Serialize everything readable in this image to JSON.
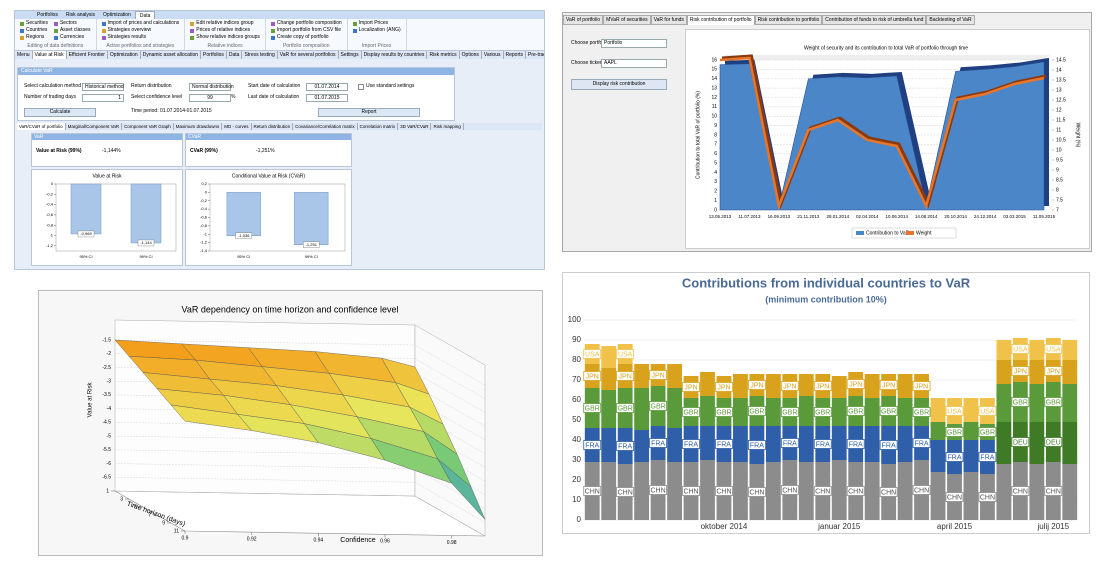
{
  "app": {
    "tabs": [
      "Portfolios",
      "Risk analysis",
      "Optimization",
      "Data"
    ],
    "ribbon_groups": [
      {
        "items": [
          "Securities",
          "Countries",
          "Regions",
          "Sectors",
          "Asset classes",
          "Currencies"
        ],
        "label": "Editing of data definitions"
      },
      {
        "items": [
          "Import of prices and calculations",
          "Strategies overview",
          "Strategies results"
        ],
        "label": "Active portfolios and strategies"
      },
      {
        "items": [
          "Edit relative indices group",
          "Prices of relative indices",
          "Show relative indices groups"
        ],
        "label": "Relative indices"
      },
      {
        "items": [
          "Change portfolio composition",
          "Import portfolio from CSV file",
          "Create copy of portfolio"
        ],
        "label": "Portfolio composition"
      },
      {
        "items": [
          "Import Prices",
          "Localization (ANG)"
        ],
        "label": "Import Prices"
      }
    ],
    "sheet_tabs": [
      "Menu",
      "Value at Risk",
      "Efficient Frontier",
      "Optimization",
      "Dynamic asset allocation",
      "Portfolios",
      "Data",
      "Stress testing",
      "VaR for several portfolios",
      "Settings",
      "Display results by countries",
      "Risk metrics",
      "Options",
      "Various",
      "Reports",
      "Pre-trade RM"
    ],
    "form": {
      "title": "Calculate VaR",
      "fields": [
        {
          "label": "Select calculation method",
          "value": "Historical method"
        },
        {
          "label": "Return distribution",
          "value": "Normal distribution"
        },
        {
          "label": "Start date of calculation",
          "value": "01.07.2014"
        },
        {
          "label": "Number of trading days",
          "value": "1"
        },
        {
          "label": "Select confidence level",
          "value": "99",
          "unit": "%"
        },
        {
          "label": "Last date of calculation",
          "value": "01.07.2015"
        }
      ],
      "checkbox": "Use standard settings",
      "buttons": [
        "Calculate",
        "Report"
      ],
      "period": "Time period: 01.07.2014-01.07.2015"
    },
    "result_tabs": [
      "VaR/CVaR of portfolio",
      "Marginal/Component VaR",
      "Component VaR Graph",
      "Maximum drawdowns",
      "MD - curves",
      "Return distribution",
      "Covariance/Correlation matrix",
      "Correlation matrix",
      "3D VaR/CVaR",
      "Risk mapping"
    ],
    "var_box": {
      "header": "VaR",
      "label": "Value at Risk (99%)",
      "value": "-1,144%"
    },
    "cvar_box": {
      "header": "CVaR",
      "label": "CVaR (99%)",
      "value": "-1,251%"
    },
    "var_chart": {
      "type": "bar",
      "title": "Value at Risk",
      "categories": [
        "95% CI",
        "99% CI"
      ],
      "values": [
        -0.969,
        -1.144
      ],
      "value_labels": [
        "-0,969",
        "-1,144"
      ],
      "color": "#a9c6e8",
      "ylim": [
        -1.3,
        0
      ],
      "yticks": [
        0,
        {
          "value": -0.2,
          "label": "-0,2"
        },
        {
          "value": -0.4,
          "label": "-0,4"
        },
        {
          "value": -0.6,
          "label": "-0,6"
        },
        {
          "value": -0.8,
          "label": "-0,8"
        },
        {
          "value": -1,
          "label": "-1"
        },
        {
          "value": -1.2,
          "label": "-1,2"
        }
      ]
    },
    "cvar_chart": {
      "type": "bar",
      "title": "Conditional Value at Risk (CVaR)",
      "categories": [
        "95% CI",
        "99% CI"
      ],
      "values": [
        -1.036,
        -1.251
      ],
      "value_labels": [
        "-1,036",
        "-1,251"
      ],
      "color": "#a9c6e8",
      "ylim": [
        -1.4,
        0.2
      ],
      "yticks": [
        {
          "value": 0.2,
          "label": "0,2"
        },
        0,
        {
          "value": -0.2,
          "label": "-0,2"
        },
        {
          "value": -0.4,
          "label": "-0,4"
        },
        {
          "value": -0.6,
          "label": "-0,6"
        },
        {
          "value": -0.8,
          "label": "-0,8"
        },
        {
          "value": -1,
          "label": "-1"
        },
        {
          "value": -1.2,
          "label": "-1,2"
        },
        {
          "value": -1.4,
          "label": "-1,4"
        }
      ]
    }
  },
  "risk_panel": {
    "tabs": [
      "VaR of portfolio",
      "MVaR of securities",
      "VaR for funds",
      "Risk contribution of portfolio",
      "Risk contribution to portfolio",
      "Contribution of funds to risk of umbrella fund",
      "Backtesting of VaR"
    ],
    "controls": [
      {
        "label": "Choose portfolio",
        "value": "Portfolio"
      },
      {
        "label": "Choose ticker",
        "value": "AAPL"
      }
    ],
    "button": "Display risk contribution",
    "chart": {
      "type": "area-line",
      "title": "Weight of security and its contribution to total VaR of portfolio through time",
      "y_label": "Contribution to total VaR of portfolio (%)",
      "y2_label": "Weight (%)",
      "categories": [
        "13.05.2013",
        "11.07.2013",
        "16.09.2013",
        "21.11.2013",
        "28.01.2014",
        "02.04.2014",
        "10.06.2014",
        "14.08.2014",
        "20.10.2014",
        "24.12.2014",
        "03.03.2015",
        "11.05.2015"
      ],
      "series": [
        {
          "name": "Contribution to VaR",
          "color": "#4a86c8",
          "values": [
            15.5,
            15.6,
            0.3,
            14,
            14.2,
            14.1,
            14.3,
            0.5,
            14.8,
            15,
            15.3,
            15.8
          ]
        },
        {
          "name": "Weight",
          "color": "#e8762a",
          "axis": "y2",
          "values": [
            14.5,
            14.6,
            7.2,
            11,
            11.5,
            10.5,
            10.2,
            7.2,
            12.5,
            12.8,
            13.3,
            13.6
          ]
        }
      ],
      "ylim": [
        0,
        16
      ],
      "yticks": [
        0,
        1,
        2,
        3,
        4,
        5,
        6,
        7,
        8,
        9,
        10,
        11,
        12,
        13,
        14,
        15,
        16
      ],
      "y2lim": [
        7,
        14.5
      ],
      "y2ticks": [
        7,
        7.5,
        8,
        8.5,
        9,
        9.5,
        10,
        10.5,
        11,
        11.5,
        12,
        12.5,
        13,
        13.5,
        14,
        14.5
      ],
      "grid": true
    }
  },
  "surface": {
    "type": "surface",
    "title": "VaR dependency on time horizon and confidence level",
    "z_label": "Value at Risk",
    "x_label": "Time horizon (days)",
    "y_label": "Confidence",
    "time": [
      1,
      3,
      5,
      7,
      9,
      11
    ],
    "confidence": [
      0.9,
      0.92,
      0.94,
      0.96,
      0.98,
      0.99
    ],
    "values": [
      [
        -1.5,
        -1.6,
        -1.7,
        -1.8,
        -2.0,
        -2.3
      ],
      [
        -1.8,
        -1.9,
        -2.1,
        -2.3,
        -2.6,
        -3.0
      ],
      [
        -2.1,
        -2.3,
        -2.5,
        -2.8,
        -3.2,
        -3.8
      ],
      [
        -2.4,
        -2.6,
        -2.9,
        -3.3,
        -3.8,
        -4.6
      ],
      [
        -2.7,
        -3.0,
        -3.3,
        -3.8,
        -4.5,
        -5.5
      ],
      [
        -3.0,
        -3.3,
        -3.7,
        -4.3,
        -5.1,
        -6.4
      ]
    ],
    "time_lim": [
      1,
      11
    ],
    "time_ticks": [
      1,
      3,
      5,
      7,
      9,
      11
    ],
    "confidence_lim": [
      0.9,
      0.99
    ],
    "confidence_ticks": [
      0.9,
      0.92,
      0.94,
      0.96,
      0.98
    ],
    "zlim": [
      -7,
      -1.5
    ],
    "zticks": [
      -1.5,
      -2,
      -2.5,
      -3,
      -3.5,
      -4,
      -4.5,
      -5,
      -5.5,
      -6,
      -6.5
    ]
  },
  "countries": {
    "type": "stacked-bar",
    "title": "Contributions from individual countries to VaR",
    "subtitle": "(minimum contribution 10%)",
    "categories": [
      null,
      null,
      null,
      null,
      null,
      null,
      null,
      null,
      "oktober 2014",
      null,
      null,
      null,
      null,
      null,
      null,
      "januar 2015",
      null,
      null,
      null,
      null,
      null,
      null,
      "april 2015",
      null,
      null,
      null,
      null,
      null,
      "julij 2015",
      null
    ],
    "series": [
      {
        "name": "CHN",
        "color": "#8c8c8c",
        "values": [
          29,
          29,
          28,
          29,
          30,
          29,
          29,
          30,
          29,
          29,
          28,
          29,
          30,
          29,
          29,
          30,
          29,
          29,
          28,
          29,
          30,
          24,
          23,
          24,
          23,
          28,
          29,
          28,
          29,
          28
        ]
      },
      {
        "name": "FRA",
        "color": "#2f5fa8",
        "values": [
          17,
          17,
          18,
          16,
          17,
          17,
          18,
          17,
          18,
          18,
          19,
          18,
          17,
          18,
          18,
          17,
          18,
          18,
          19,
          18,
          17,
          16,
          17,
          16,
          17,
          0,
          0,
          0,
          0,
          0
        ]
      },
      {
        "name": "DEU",
        "color": "#3f7a26",
        "values": [
          0,
          0,
          0,
          0,
          0,
          0,
          0,
          0,
          0,
          0,
          0,
          0,
          0,
          0,
          0,
          0,
          0,
          0,
          0,
          0,
          0,
          0,
          0,
          0,
          0,
          21,
          20,
          21,
          20,
          21
        ]
      },
      {
        "name": "GBR",
        "color": "#5a9a3a",
        "values": [
          20,
          19,
          20,
          21,
          20,
          20,
          14,
          15,
          14,
          14,
          15,
          14,
          14,
          15,
          14,
          14,
          15,
          14,
          15,
          14,
          14,
          9,
          8,
          9,
          8,
          19,
          20,
          19,
          20,
          19
        ]
      },
      {
        "name": "JPN",
        "color": "#d9a21c",
        "values": [
          12,
          11,
          12,
          12,
          11,
          12,
          11,
          12,
          11,
          12,
          11,
          12,
          12,
          11,
          12,
          11,
          12,
          12,
          11,
          12,
          12,
          0,
          0,
          0,
          0,
          12,
          11,
          12,
          11,
          12
        ]
      },
      {
        "name": "USA",
        "color": "#f0c24a",
        "values": [
          10,
          11,
          10,
          0,
          0,
          0,
          0,
          0,
          0,
          0,
          0,
          0,
          0,
          0,
          0,
          0,
          0,
          0,
          0,
          0,
          0,
          12,
          13,
          12,
          13,
          10,
          11,
          10,
          11,
          10
        ]
      }
    ],
    "ylim": [
      0,
      100
    ],
    "yticks": [
      0,
      10,
      20,
      30,
      40,
      50,
      60,
      70,
      80,
      90,
      100
    ],
    "grid": true
  }
}
